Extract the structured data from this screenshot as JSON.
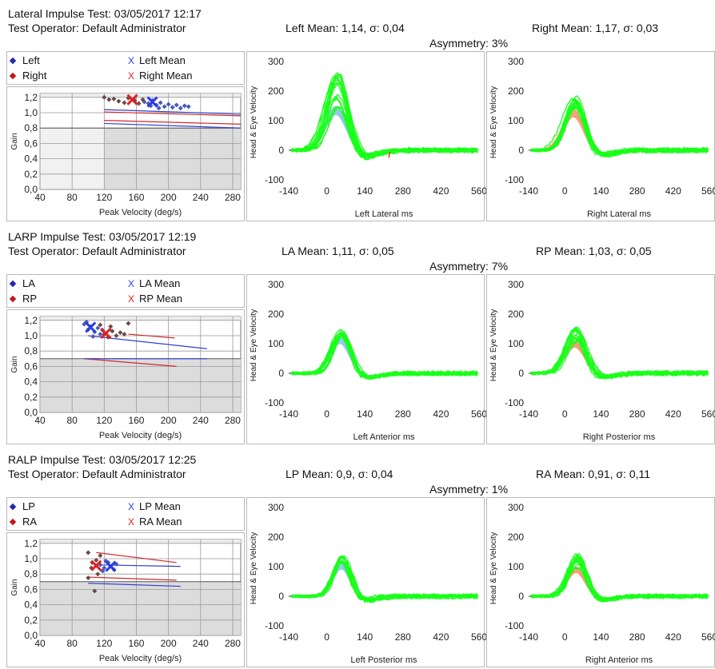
{
  "colors": {
    "left_marker": "#1f2bb0",
    "right_marker": "#c01818",
    "left_mean_cross": "#2b3bdf",
    "right_mean_cross": "#e02020",
    "scatter_point": "#6b4a4a",
    "norm_line_blue": "#2f3fd0",
    "norm_line_red": "#d02a2a",
    "plot_background": "#dcdcdc",
    "head_trace_blue": "#8fc6e8",
    "head_trace_orange": "#f0a070",
    "eye_trace_green": "#19ff19"
  },
  "sections": [
    {
      "title": "Lateral Impulse Test: 03/05/2017 12:17",
      "operator": "Test Operator: Default Administrator",
      "left_mean_text": "Left Mean: 1,14, σ: 0,04",
      "right_mean_text": "Right Mean: 1,17, σ: 0,03",
      "asymmetry_text": "Asymmetry: 3%",
      "legend": {
        "left": "Left",
        "left_mean": "Left Mean",
        "right": "Right",
        "right_mean": "Right Mean"
      },
      "head_trace_color": "blue",
      "right_head_trace_color": "orange"
    },
    {
      "title": "LARP Impulse Test: 03/05/2017 12:19",
      "operator": "Test Operator: Default Administrator",
      "left_mean_text": "LA Mean: 1,11, σ: 0,05",
      "right_mean_text": "RP Mean: 1,03, σ: 0,05",
      "asymmetry_text": "Asymmetry: 7%",
      "legend": {
        "left": "LA",
        "left_mean": "LA Mean",
        "right": "RP",
        "right_mean": "RP Mean"
      },
      "head_trace_color": "blue",
      "right_head_trace_color": "orange"
    },
    {
      "title": "RALP Impulse Test: 03/05/2017 12:25",
      "operator": "Test Operator: Default Administrator",
      "left_mean_text": "LP Mean: 0,9, σ: 0,04",
      "right_mean_text": "RA Mean: 0,91, σ: 0,11",
      "asymmetry_text": "Asymmetry: 1%",
      "legend": {
        "left": "LP",
        "left_mean": "LP Mean",
        "right": "RA",
        "right_mean": "RA Mean"
      },
      "head_trace_color": "blue",
      "right_head_trace_color": "orange"
    }
  ],
  "chart_data": [
    {
      "type": "scatter",
      "section": 0,
      "xlabel": "Peak Velocity (deg/s)",
      "ylabel": "Gain",
      "xlim": [
        40,
        290
      ],
      "ylim": [
        0,
        1.25
      ],
      "xticks": [
        "40",
        "80",
        "120",
        "160",
        "200",
        "240",
        "280"
      ],
      "yticks": [
        "0,0",
        "0,2",
        "0,4",
        "0,6",
        "0,8",
        "1,0",
        "1,2"
      ],
      "norm_threshold": 0.8,
      "grid": true,
      "grey_start_x": 120,
      "left_points": [
        [
          170,
          1.14
        ],
        [
          175,
          1.12
        ],
        [
          180,
          1.16
        ],
        [
          185,
          1.1
        ],
        [
          190,
          1.13
        ],
        [
          195,
          1.08
        ],
        [
          200,
          1.11
        ],
        [
          205,
          1.07
        ],
        [
          210,
          1.1
        ],
        [
          215,
          1.06
        ],
        [
          220,
          1.09
        ],
        [
          225,
          1.08
        ],
        [
          178,
          1.09
        ],
        [
          188,
          1.06
        ]
      ],
      "right_points": [
        [
          120,
          1.2
        ],
        [
          126,
          1.17
        ],
        [
          132,
          1.18
        ],
        [
          138,
          1.15
        ],
        [
          145,
          1.13
        ],
        [
          150,
          1.19
        ],
        [
          158,
          1.16
        ],
        [
          163,
          1.12
        ],
        [
          168,
          1.17
        ]
      ],
      "left_mean": [
        180,
        1.14
      ],
      "right_mean": [
        155,
        1.17
      ],
      "norm_lines": [
        {
          "color": "blue",
          "from": [
            120,
            1.04
          ],
          "to": [
            290,
            0.98
          ]
        },
        {
          "color": "red",
          "from": [
            120,
            1.01
          ],
          "to": [
            290,
            0.96
          ]
        },
        {
          "color": "red",
          "from": [
            120,
            0.9
          ],
          "to": [
            290,
            0.85
          ]
        },
        {
          "color": "blue",
          "from": [
            120,
            0.86
          ],
          "to": [
            290,
            0.8
          ]
        }
      ]
    },
    {
      "type": "line",
      "section": 0,
      "side": "left",
      "xlabel": "Left Lateral ms",
      "ylabel": "Head & Eye Velocity",
      "xlim": [
        -140,
        560
      ],
      "ylim": [
        -100,
        300
      ],
      "xticks": [
        "-140",
        "0",
        "140",
        "280",
        "420",
        "560"
      ],
      "yticks": [
        "-100",
        "0",
        "100",
        "200",
        "300"
      ],
      "peak_time": 40,
      "peak_min": 150,
      "peak_max": 270,
      "width": 55,
      "trace_count": 16,
      "ghost_lines": true
    },
    {
      "type": "line",
      "section": 0,
      "side": "right",
      "xlabel": "Right Lateral ms",
      "ylabel": "Head & Eye Velocity",
      "xlim": [
        -140,
        560
      ],
      "ylim": [
        -100,
        300
      ],
      "xticks": [
        "-140",
        "0",
        "140",
        "280",
        "420",
        "560"
      ],
      "yticks": [
        "-100",
        "0",
        "100",
        "200",
        "300"
      ],
      "peak_time": 40,
      "peak_min": 140,
      "peak_max": 190,
      "width": 55,
      "trace_count": 14,
      "ghost_lines": false
    },
    {
      "type": "scatter",
      "section": 1,
      "xlabel": "Peak Velocity (deg/s)",
      "ylabel": "Gain",
      "xlim": [
        40,
        290
      ],
      "ylim": [
        0,
        1.25
      ],
      "xticks": [
        "40",
        "80",
        "120",
        "160",
        "200",
        "240",
        "280"
      ],
      "yticks": [
        "0,0",
        "0,2",
        "0,4",
        "0,6",
        "0,8",
        "1,0",
        "1,2"
      ],
      "norm_threshold": 0.7,
      "grid": true,
      "grey_start_x": 40,
      "left_points": [
        [
          95,
          1.15
        ],
        [
          100,
          1.08
        ],
        [
          103,
          1.12
        ],
        [
          108,
          1.05
        ],
        [
          112,
          1.1
        ],
        [
          115,
          1.02
        ],
        [
          118,
          1.07
        ],
        [
          98,
          1.18
        ],
        [
          106,
          0.99
        ]
      ],
      "right_points": [
        [
          115,
          1.14
        ],
        [
          120,
          1.02
        ],
        [
          125,
          0.98
        ],
        [
          130,
          1.06
        ],
        [
          135,
          1.0
        ],
        [
          140,
          1.04
        ],
        [
          145,
          1.02
        ],
        [
          150,
          1.16
        ],
        [
          128,
          1.12
        ]
      ],
      "left_mean": [
        103,
        1.11
      ],
      "right_mean": [
        122,
        1.03
      ],
      "norm_lines": [
        {
          "color": "blue",
          "from": [
            100,
            1.0
          ],
          "to": [
            248,
            0.83
          ]
        },
        {
          "color": "red",
          "from": [
            150,
            1.02
          ],
          "to": [
            208,
            0.97
          ]
        },
        {
          "color": "red",
          "from": [
            95,
            0.7
          ],
          "to": [
            210,
            0.6
          ]
        },
        {
          "color": "blue",
          "from": [
            95,
            0.7
          ],
          "to": [
            248,
            0.7
          ]
        }
      ]
    },
    {
      "type": "line",
      "section": 1,
      "side": "left",
      "xlabel": "Left Anterior ms",
      "ylabel": "Head & Eye Velocity",
      "xlim": [
        -140,
        560
      ],
      "ylim": [
        -100,
        300
      ],
      "xticks": [
        "-140",
        "0",
        "140",
        "280",
        "420",
        "560"
      ],
      "yticks": [
        "-100",
        "0",
        "100",
        "200",
        "300"
      ],
      "peak_time": 55,
      "peak_min": 125,
      "peak_max": 150,
      "width": 50,
      "trace_count": 14,
      "ghost_lines": false
    },
    {
      "type": "line",
      "section": 1,
      "side": "right",
      "xlabel": "Right Posterior ms",
      "ylabel": "Head & Eye Velocity",
      "xlim": [
        -140,
        560
      ],
      "ylim": [
        -100,
        300
      ],
      "xticks": [
        "-140",
        "0",
        "140",
        "280",
        "420",
        "560"
      ],
      "yticks": [
        "-100",
        "0",
        "100",
        "200",
        "300"
      ],
      "peak_time": 45,
      "peak_min": 110,
      "peak_max": 160,
      "width": 55,
      "trace_count": 14,
      "ghost_lines": false
    },
    {
      "type": "scatter",
      "section": 2,
      "xlabel": "Peak Velocity (deg/s)",
      "ylabel": "Gain",
      "xlim": [
        40,
        290
      ],
      "ylim": [
        0,
        1.25
      ],
      "xticks": [
        "40",
        "80",
        "120",
        "160",
        "200",
        "240",
        "280"
      ],
      "yticks": [
        "0,0",
        "0,2",
        "0,4",
        "0,6",
        "0,8",
        "1,0",
        "1,2"
      ],
      "norm_threshold": 0.7,
      "grid": true,
      "grey_start_x": 40,
      "left_points": [
        [
          115,
          0.92
        ],
        [
          120,
          0.88
        ],
        [
          125,
          0.95
        ],
        [
          128,
          0.9
        ],
        [
          132,
          0.86
        ],
        [
          135,
          0.93
        ],
        [
          122,
          0.97
        ],
        [
          118,
          0.84
        ]
      ],
      "right_points": [
        [
          100,
          1.08
        ],
        [
          105,
          0.95
        ],
        [
          108,
          0.58
        ],
        [
          112,
          0.8
        ],
        [
          100,
          0.75
        ],
        [
          110,
          0.98
        ],
        [
          115,
          1.04
        ],
        [
          104,
          0.88
        ]
      ],
      "left_mean": [
        128,
        0.9
      ],
      "right_mean": [
        110,
        0.91
      ],
      "norm_lines": [
        {
          "color": "red",
          "from": [
            110,
            1.08
          ],
          "to": [
            210,
            0.95
          ]
        },
        {
          "color": "blue",
          "from": [
            110,
            0.92
          ],
          "to": [
            215,
            0.9
          ]
        },
        {
          "color": "red",
          "from": [
            100,
            0.76
          ],
          "to": [
            210,
            0.72
          ]
        },
        {
          "color": "blue",
          "from": [
            100,
            0.68
          ],
          "to": [
            215,
            0.64
          ]
        }
      ]
    },
    {
      "type": "line",
      "section": 2,
      "side": "left",
      "xlabel": "Left Posterior ms",
      "ylabel": "Head & Eye Velocity",
      "xlim": [
        -140,
        560
      ],
      "ylim": [
        -100,
        300
      ],
      "xticks": [
        "-140",
        "0",
        "140",
        "280",
        "420",
        "560"
      ],
      "yticks": [
        "-100",
        "0",
        "100",
        "200",
        "300"
      ],
      "peak_time": 60,
      "peak_min": 115,
      "peak_max": 140,
      "width": 45,
      "trace_count": 12,
      "ghost_lines": false
    },
    {
      "type": "line",
      "section": 2,
      "side": "right",
      "xlabel": "Right Anterior ms",
      "ylabel": "Head & Eye Velocity",
      "xlim": [
        -140,
        560
      ],
      "ylim": [
        -100,
        300
      ],
      "xticks": [
        "-140",
        "0",
        "140",
        "280",
        "420",
        "560"
      ],
      "yticks": [
        "-100",
        "0",
        "100",
        "200",
        "300"
      ],
      "peak_time": 50,
      "peak_min": 100,
      "peak_max": 155,
      "width": 50,
      "trace_count": 14,
      "ghost_lines": false
    }
  ]
}
